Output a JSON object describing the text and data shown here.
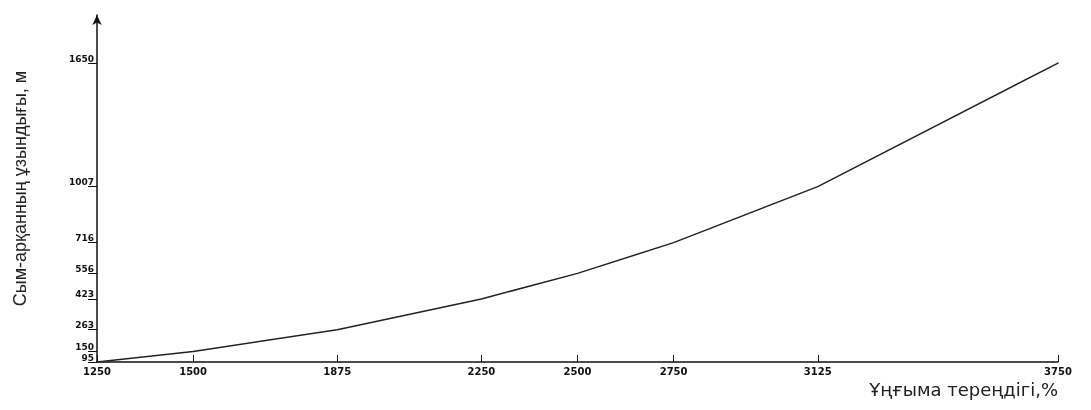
{
  "chart_data": {
    "type": "line",
    "xlabel": "Ұңғыма тереңдігі,%",
    "ylabel": "Сым-арқанның ұзындығы, м",
    "x": [
      1250,
      1500,
      1875,
      2250,
      2500,
      2750,
      3125,
      3750
    ],
    "series": [
      {
        "color": "#222222",
        "values": [
          95,
          150,
          263,
          423,
          556,
          716,
          1007,
          1650
        ]
      }
    ],
    "xlim": [
      1250,
      3750
    ],
    "xticks": [
      1250,
      1500,
      1875,
      2250,
      2500,
      2750,
      3125,
      3750
    ],
    "ylim": [
      95,
      1900
    ],
    "yticks": [
      95,
      150,
      263,
      423,
      556,
      716,
      1007,
      1650
    ],
    "marker": "none",
    "line_style": "solid"
  }
}
